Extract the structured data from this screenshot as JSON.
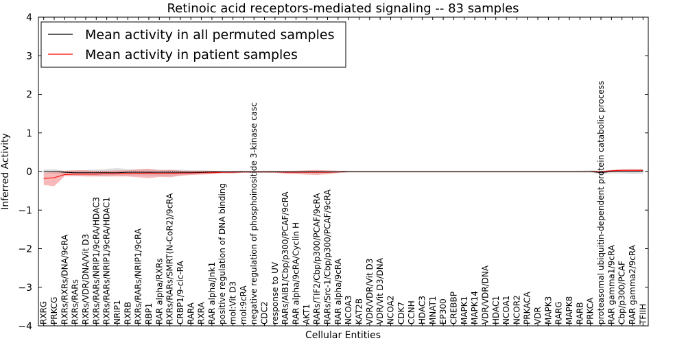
{
  "chart_data": {
    "type": "line",
    "title": "Retinoic acid receptors-mediated signaling -- 83 samples",
    "xlabel": "Cellular Entities",
    "ylabel": "Inferred Activity",
    "ylim": [
      -4,
      4
    ],
    "yticks": [
      -4,
      -3,
      -2,
      -1,
      0,
      1,
      2,
      3,
      4
    ],
    "ytick_labels": [
      "−4",
      "−3",
      "−2",
      "−1",
      "0",
      "1",
      "2",
      "3",
      "4"
    ],
    "grid": false,
    "legend_position": "top-left",
    "categories": [
      "RXRG",
      "PRKCG",
      "RXRs/RXRs/DNA/9cRA",
      "RXRs/RARs",
      "RXRs/VDR/DNA/Vit D3",
      "RXRs/RARs/NRIP1/9cRA/HDAC3",
      "RXRs/RARs/NRIP1/9cRA/HDAC1",
      "NRIP1",
      "RXRB",
      "RXRs/RARs/NRIP1/9cRA",
      "RBP1",
      "RAR alpha/RXRs",
      "RXRs/RARs/SMRT(N-CoR2)/9cRA",
      "CRBP1/9-cic-RA",
      "RARA",
      "RXRA",
      "RAR alpha/Jnk1",
      "positive regulation of DNA binding",
      "mol:Vit D3",
      "mol:9cRA",
      "negative regulation of phosphoinositide 3-kinase casc",
      "CDC2",
      "response to UV",
      "RARs/AIB1/Cbp/p300/PCAF/9cRA",
      "RAR alpha/9cRA/Cyclin H",
      "AKT1",
      "RARs/TIF2/Cbp/p300/PCAF/9cRA",
      "RARs/Src-1/Cbp/p300/PCAF/9cRA",
      "RAR alpha/9cRA",
      "NCOA3",
      "KAT2B",
      "VDR/VDR/Vit D3",
      "VDR/Vit D3/DNA",
      "NCOA2",
      "CDK7",
      "CCNH",
      "HDAC3",
      "MNAT1",
      "EP300",
      "CREBBP",
      "MAPK1",
      "MAPK14",
      "VDR/VDR/DNA",
      "HDAC1",
      "NCOA1",
      "NCOR2",
      "PRKACA",
      "VDR",
      "MAPK3",
      "RARG",
      "MAPK8",
      "RARB",
      "PRKCA",
      "proteasomal ubiquitin-dependent protein catabolic process",
      "RAR gamma1/9cRA",
      "Cbp/p300/PCAF",
      "RAR gamma2/9cRA",
      "TFIIH"
    ],
    "series": [
      {
        "name": "Mean activity in all permuted samples",
        "color": "#000000",
        "band_color": "#bbbbbb",
        "values": [
          0.0,
          0.0,
          -0.02,
          -0.03,
          -0.03,
          -0.03,
          -0.03,
          -0.03,
          -0.02,
          -0.02,
          -0.02,
          -0.02,
          -0.02,
          -0.02,
          -0.02,
          -0.02,
          -0.01,
          -0.01,
          -0.01,
          -0.01,
          -0.01,
          -0.01,
          -0.01,
          -0.01,
          -0.01,
          -0.01,
          -0.01,
          -0.01,
          -0.01,
          0.0,
          0.0,
          0.0,
          0.0,
          0.0,
          0.0,
          0.0,
          0.0,
          0.0,
          0.0,
          0.0,
          0.0,
          0.0,
          0.0,
          0.0,
          0.0,
          0.0,
          0.0,
          0.0,
          0.0,
          0.0,
          0.0,
          0.0,
          0.0,
          -0.03,
          0.0,
          0.0,
          0.0,
          0.01
        ],
        "band_upper": [
          0.05,
          0.06,
          0.02,
          0.03,
          0.04,
          0.05,
          0.07,
          0.09,
          0.06,
          0.05,
          0.06,
          0.05,
          0.04,
          0.05,
          0.03,
          0.03,
          0.02,
          0.02,
          0.02,
          0.02,
          0.02,
          0.02,
          0.02,
          0.02,
          0.02,
          0.02,
          0.02,
          0.02,
          0.02,
          0.02,
          0.02,
          0.02,
          0.02,
          0.02,
          0.02,
          0.02,
          0.02,
          0.02,
          0.02,
          0.02,
          0.02,
          0.02,
          0.02,
          0.02,
          0.02,
          0.02,
          0.02,
          0.02,
          0.02,
          0.02,
          0.02,
          0.02,
          0.03,
          0.02,
          0.04,
          0.05,
          0.06,
          0.06
        ],
        "band_lower": [
          -0.05,
          -0.06,
          -0.08,
          -0.1,
          -0.1,
          -0.11,
          -0.12,
          -0.1,
          -0.11,
          -0.1,
          -0.11,
          -0.12,
          -0.12,
          -0.1,
          -0.08,
          -0.06,
          -0.05,
          -0.04,
          -0.04,
          -0.03,
          -0.04,
          -0.03,
          -0.04,
          -0.04,
          -0.05,
          -0.05,
          -0.05,
          -0.05,
          -0.04,
          -0.03,
          -0.03,
          -0.03,
          -0.03,
          -0.03,
          -0.03,
          -0.03,
          -0.03,
          -0.03,
          -0.03,
          -0.03,
          -0.03,
          -0.03,
          -0.03,
          -0.03,
          -0.03,
          -0.03,
          -0.03,
          -0.03,
          -0.03,
          -0.03,
          -0.03,
          -0.03,
          -0.03,
          -0.07,
          -0.05,
          -0.05,
          -0.07,
          -0.06
        ]
      },
      {
        "name": "Mean activity in patient samples",
        "color": "#ff0000",
        "band_color": "#f08080",
        "values": [
          -0.18,
          -0.16,
          -0.08,
          -0.07,
          -0.07,
          -0.07,
          -0.06,
          -0.06,
          -0.05,
          -0.05,
          -0.04,
          -0.05,
          -0.05,
          -0.04,
          -0.04,
          -0.03,
          -0.03,
          -0.02,
          -0.02,
          -0.01,
          -0.01,
          -0.01,
          -0.01,
          -0.02,
          -0.02,
          -0.02,
          -0.02,
          -0.02,
          -0.01,
          0.0,
          0.0,
          0.0,
          0.0,
          0.0,
          0.0,
          0.0,
          0.0,
          0.0,
          0.0,
          0.0,
          0.0,
          0.0,
          0.0,
          0.0,
          0.0,
          0.0,
          0.0,
          0.0,
          0.0,
          0.0,
          0.0,
          0.0,
          0.0,
          0.0,
          0.02,
          0.03,
          0.03,
          0.03
        ],
        "band_upper": [
          -0.03,
          -0.01,
          0.02,
          0.03,
          0.03,
          0.02,
          0.02,
          0.03,
          0.03,
          0.06,
          0.07,
          0.03,
          0.05,
          0.02,
          0.02,
          0.02,
          0.02,
          0.01,
          0.01,
          0.01,
          0.01,
          0.01,
          0.01,
          0.01,
          0.02,
          0.03,
          0.04,
          0.03,
          0.02,
          0.01,
          0.01,
          0.01,
          0.01,
          0.01,
          0.01,
          0.01,
          0.01,
          0.01,
          0.01,
          0.01,
          0.01,
          0.01,
          0.01,
          0.01,
          0.01,
          0.01,
          0.01,
          0.01,
          0.01,
          0.01,
          0.01,
          0.01,
          0.01,
          0.01,
          0.04,
          0.06,
          0.06,
          0.06
        ],
        "band_lower": [
          -0.35,
          -0.38,
          -0.12,
          -0.12,
          -0.13,
          -0.13,
          -0.13,
          -0.13,
          -0.13,
          -0.15,
          -0.17,
          -0.14,
          -0.15,
          -0.11,
          -0.09,
          -0.08,
          -0.07,
          -0.05,
          -0.05,
          -0.03,
          -0.03,
          -0.03,
          -0.03,
          -0.06,
          -0.07,
          -0.08,
          -0.09,
          -0.07,
          -0.04,
          -0.02,
          -0.02,
          -0.02,
          -0.02,
          -0.02,
          -0.02,
          -0.02,
          -0.02,
          -0.02,
          -0.02,
          -0.02,
          -0.02,
          -0.02,
          -0.02,
          -0.02,
          -0.02,
          -0.02,
          -0.02,
          -0.02,
          -0.02,
          -0.02,
          -0.02,
          -0.02,
          -0.02,
          -0.02,
          0.0,
          0.0,
          0.0,
          0.0
        ]
      }
    ]
  }
}
